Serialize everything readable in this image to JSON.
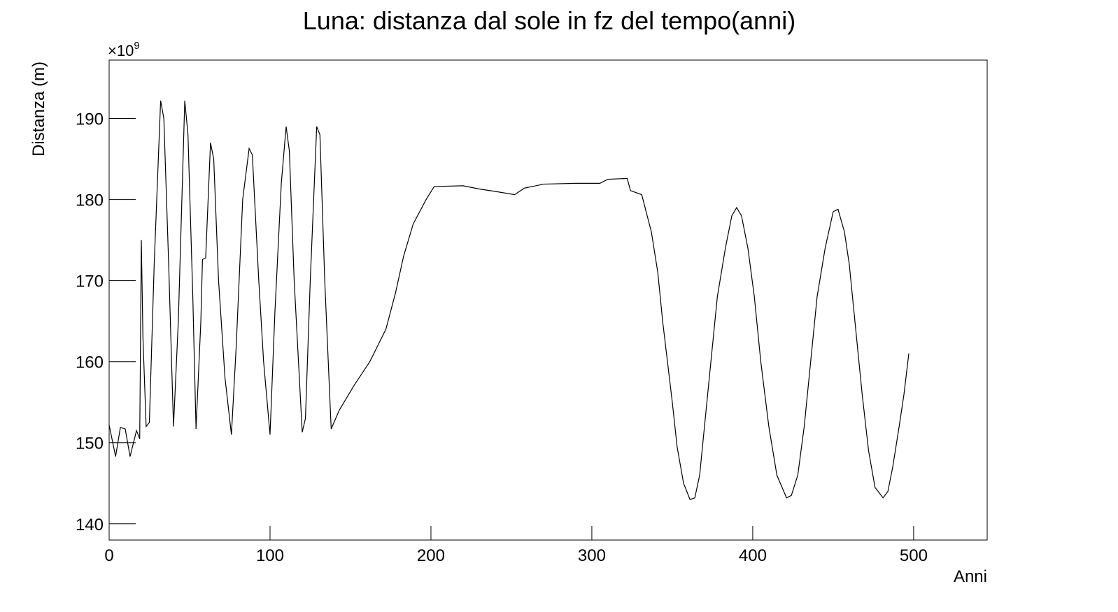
{
  "chart_data": {
    "type": "line",
    "title": "Luna: distanza dal sole in fz del tempo(anni)",
    "x_label": "Anni",
    "y_label": "Distanza (m)",
    "y_multiplier": {
      "base": "×10",
      "exponent": "9"
    },
    "xlim": [
      0,
      545.7
    ],
    "ylim": [
      138.0,
      197.2
    ],
    "xticks": [
      0,
      100,
      200,
      300,
      400,
      500
    ],
    "yticks": [
      140,
      150,
      160,
      170,
      180,
      190
    ],
    "grid": false,
    "series": [
      {
        "name": "Luna",
        "color": "#000000",
        "x": [
          0,
          4,
          7,
          10,
          13,
          17,
          19,
          20,
          21,
          23,
          25,
          28,
          32,
          34,
          37,
          40,
          43,
          47,
          49,
          52,
          54,
          57,
          58,
          60,
          63,
          65,
          68,
          72,
          76,
          79,
          83,
          87,
          89,
          93,
          96,
          100,
          103,
          107,
          110,
          112,
          115,
          120,
          122,
          125,
          129,
          131,
          134,
          138,
          143,
          152,
          162,
          172,
          178,
          183,
          189,
          197,
          202,
          220,
          230,
          240,
          252,
          258,
          270,
          290,
          305,
          310,
          322,
          324,
          331,
          337,
          341,
          344,
          347,
          350,
          353,
          357,
          361,
          364,
          367,
          370,
          374,
          378,
          383,
          387,
          390,
          393,
          397,
          401,
          405,
          410,
          415,
          421,
          424,
          428,
          432,
          436,
          440,
          445,
          450,
          453,
          457,
          460,
          464,
          468,
          472,
          476,
          481,
          484,
          487,
          491,
          494,
          497
        ],
        "values": [
          152.2,
          148.3,
          151.9,
          151.7,
          148.3,
          151.5,
          150.5,
          175,
          163,
          152,
          152.5,
          172,
          192.2,
          190,
          172,
          152,
          165,
          192.2,
          188,
          168,
          151.7,
          165,
          172.6,
          172.8,
          187,
          185,
          170,
          158,
          151,
          162,
          180,
          186.3,
          185.5,
          170,
          160,
          151,
          166,
          182,
          189,
          186,
          170,
          151.3,
          153,
          170,
          189,
          188,
          170,
          151.7,
          154,
          157,
          160,
          164,
          168.5,
          173,
          177,
          180,
          181.6,
          181.7,
          181.3,
          181,
          180.6,
          181.4,
          181.9,
          182,
          182,
          182.5,
          182.6,
          181.1,
          180.6,
          176,
          171,
          165,
          160,
          155,
          149.5,
          145,
          143,
          143.2,
          146,
          152,
          160,
          168,
          174,
          178,
          179,
          178,
          174,
          168,
          160,
          152,
          146,
          143.2,
          143.5,
          146,
          152,
          160,
          168,
          174,
          178.5,
          178.8,
          176,
          172,
          164,
          156,
          149,
          144.5,
          143.2,
          144,
          147,
          152,
          156,
          161
        ]
      }
    ]
  }
}
